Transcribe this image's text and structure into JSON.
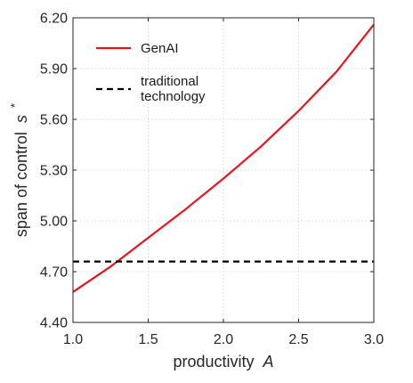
{
  "chart_data": {
    "type": "line",
    "xlabel": "productivity",
    "xlabel_var": "A",
    "ylabel": "span of control",
    "ylabel_var": "s",
    "ylabel_sup": "*",
    "xlim": [
      1.0,
      3.0
    ],
    "ylim": [
      4.4,
      6.2
    ],
    "xticks": [
      "1.0",
      "1.5",
      "2.0",
      "2.5",
      "3.0"
    ],
    "xtick_values": [
      1.0,
      1.5,
      2.0,
      2.5,
      3.0
    ],
    "yticks": [
      "4.40",
      "4.70",
      "5.00",
      "5.30",
      "5.60",
      "5.90",
      "6.20"
    ],
    "ytick_values": [
      4.4,
      4.7,
      5.0,
      5.3,
      5.6,
      5.9,
      6.2
    ],
    "grid": true,
    "legend_position": "top-left",
    "series": [
      {
        "name": "GenAI",
        "color": "#e8141b",
        "style": "solid",
        "x": [
          1.0,
          1.25,
          1.5,
          1.75,
          2.0,
          2.25,
          2.5,
          2.75,
          3.0
        ],
        "y": [
          4.58,
          4.73,
          4.9,
          5.07,
          5.25,
          5.44,
          5.65,
          5.88,
          6.16
        ]
      },
      {
        "name": "traditional technology",
        "legend_lines": [
          "traditional",
          "technology"
        ],
        "color": "#000000",
        "style": "dashed",
        "x": [
          1.0,
          3.0
        ],
        "y": [
          4.76,
          4.76
        ]
      }
    ]
  }
}
